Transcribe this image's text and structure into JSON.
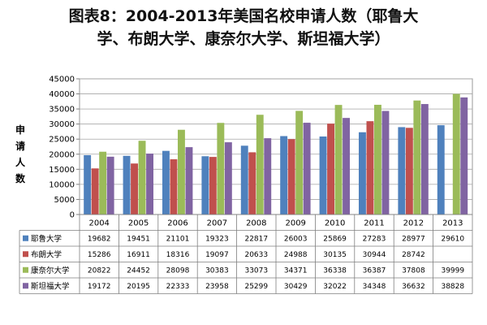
{
  "chart_data": {
    "type": "bar",
    "title_line1": "图表8：2004-2013年美国名校申请人数（耶鲁大",
    "title_line2": "学、布朗大学、康奈尔大学、斯坦福大学）",
    "ylabel": "申请人数",
    "ylim": [
      0,
      45000
    ],
    "yticks": [
      0,
      5000,
      10000,
      15000,
      20000,
      25000,
      30000,
      35000,
      40000,
      45000
    ],
    "categories": [
      "2004",
      "2005",
      "2006",
      "2007",
      "2008",
      "2009",
      "2010",
      "2011",
      "2012",
      "2013"
    ],
    "series": [
      {
        "name": "耶鲁大学",
        "color": "#4f81bd",
        "values": [
          19682,
          19451,
          21101,
          19323,
          22817,
          26003,
          25869,
          27283,
          28977,
          29610
        ]
      },
      {
        "name": "布朗大学",
        "color": "#c0504d",
        "values": [
          15286,
          16911,
          18316,
          19097,
          20633,
          24988,
          30135,
          30944,
          28742,
          null
        ]
      },
      {
        "name": "康奈尔大学",
        "color": "#9bbb59",
        "values": [
          20822,
          24452,
          28098,
          30383,
          33073,
          34371,
          36338,
          36387,
          37808,
          39999
        ]
      },
      {
        "name": "斯坦福大学",
        "color": "#8064a2",
        "values": [
          19172,
          20195,
          22333,
          23958,
          25299,
          30429,
          32022,
          34348,
          36632,
          38828
        ]
      }
    ],
    "grid": true,
    "legend": "data table"
  }
}
